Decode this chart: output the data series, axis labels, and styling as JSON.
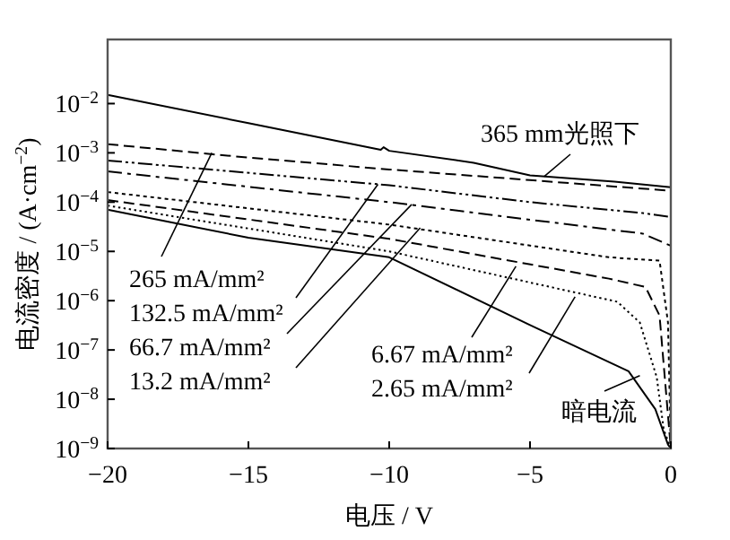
{
  "chart_data": {
    "type": "line",
    "xlabel": "电压 / V",
    "ylabel": "电流密度 / (A·cm$^{−2}$)",
    "log": "y",
    "xlim": [
      -20,
      0
    ],
    "ylim": [
      1e-09,
      0.2
    ],
    "xticks": [
      {
        "value": -20,
        "label": "−20"
      },
      {
        "value": -15,
        "label": "−15"
      },
      {
        "value": -10,
        "label": "−10"
      },
      {
        "value": -5,
        "label": "−5"
      },
      0
    ],
    "yticks": [
      {
        "value": 1e-09,
        "label": "10$^{−9}$"
      },
      {
        "value": 1e-08,
        "label": "10$^{−8}$"
      },
      {
        "value": 1e-07,
        "label": "10$^{−7}$"
      },
      {
        "value": 1e-06,
        "label": "10$^{−6}$"
      },
      {
        "value": 1e-05,
        "label": "10$^{−5}$"
      },
      {
        "value": 0.0001,
        "label": "10$^{−4}$"
      },
      {
        "value": 0.001,
        "label": "10$^{−3}$"
      },
      {
        "value": 0.01,
        "label": "10$^{−2}$"
      }
    ],
    "grid": false,
    "marker": "none",
    "series": [
      {
        "color": "#000000",
        "line_style": "solid",
        "x": [
          -20,
          -15,
          -10.3,
          -10.2,
          -10,
          -7,
          -5,
          -2,
          0
        ],
        "values": [
          0.015,
          0.004,
          0.00115,
          0.0013,
          0.0011,
          0.00063,
          0.00035,
          0.00026,
          0.0002
        ]
      },
      {
        "color": "#000000",
        "line_style": "dashed",
        "x": [
          -20,
          -15,
          -10,
          -5,
          0
        ],
        "values": [
          0.0015,
          0.0008,
          0.00046,
          0.00028,
          0.00017
        ]
      },
      {
        "color": "#000000",
        "line_style": "dashdotdot",
        "x": [
          -20,
          -10,
          -5,
          -1,
          0
        ],
        "values": [
          0.0007,
          0.00022,
          0.0001,
          6e-05,
          5e-05
        ]
      },
      {
        "color": "#000000",
        "line_style": "dashdot",
        "x": [
          -20,
          -10,
          -5,
          -1,
          0
        ],
        "values": [
          0.00042,
          0.0001,
          4.4e-05,
          2.3e-05,
          1.3e-05
        ]
      },
      {
        "color": "#000000",
        "line_style": "dotted",
        "x": [
          -20,
          -10,
          -2.2,
          -0.4,
          -0.1,
          0
        ],
        "values": [
          0.00016,
          3.5e-05,
          7.6e-06,
          6.5e-06,
          3.6e-07,
          1e-09
        ]
      },
      {
        "color": "#000000",
        "line_style": "dashed",
        "x": [
          -20,
          -10,
          -2.2,
          -0.9,
          -0.4,
          0
        ],
        "values": [
          0.00011,
          1.8e-05,
          2.8e-06,
          1.9e-06,
          5e-07,
          1e-09
        ]
      },
      {
        "color": "#000000",
        "line_style": "finedotted",
        "x": [
          -20,
          -10,
          -1.9,
          -1.1,
          -0.5,
          -0.25,
          0
        ],
        "values": [
          8.5e-05,
          1e-05,
          9.5e-07,
          3.6e-07,
          2.8e-08,
          2.4e-09,
          1e-09
        ]
      },
      {
        "color": "#000000",
        "line_style": "solid",
        "x": [
          -20,
          -15,
          -10,
          -5,
          -1.5,
          -0.55,
          -0.1,
          0
        ],
        "values": [
          7e-05,
          1.9e-05,
          7.6e-06,
          3.2e-07,
          3.7e-08,
          6.3e-09,
          1.2e-09,
          1e-09
        ]
      }
    ],
    "annotations": [
      {
        "text": "365 mm光照下",
        "x": -4.5,
        "y": 0.00033
      },
      {
        "text": "265 mA/mm²",
        "x": -16.3,
        "y": 0.001
      },
      {
        "text": "132.5 mA/mm²",
        "x": -10.4,
        "y": 0.00023
      },
      {
        "text": "66.7 mA/mm²",
        "x": -9.2,
        "y": 9e-05
      },
      {
        "text": "13.2 mA/mm²",
        "x": -8.9,
        "y": 3e-05
      },
      {
        "text": "6.67 mA/mm²",
        "x": -5.5,
        "y": 5e-06
      },
      {
        "text": "2.65 mA/mm²",
        "x": -3.4,
        "y": 1.2e-06
      },
      {
        "text": "暗电流",
        "x": -1.1,
        "y": 3e-08
      }
    ]
  }
}
